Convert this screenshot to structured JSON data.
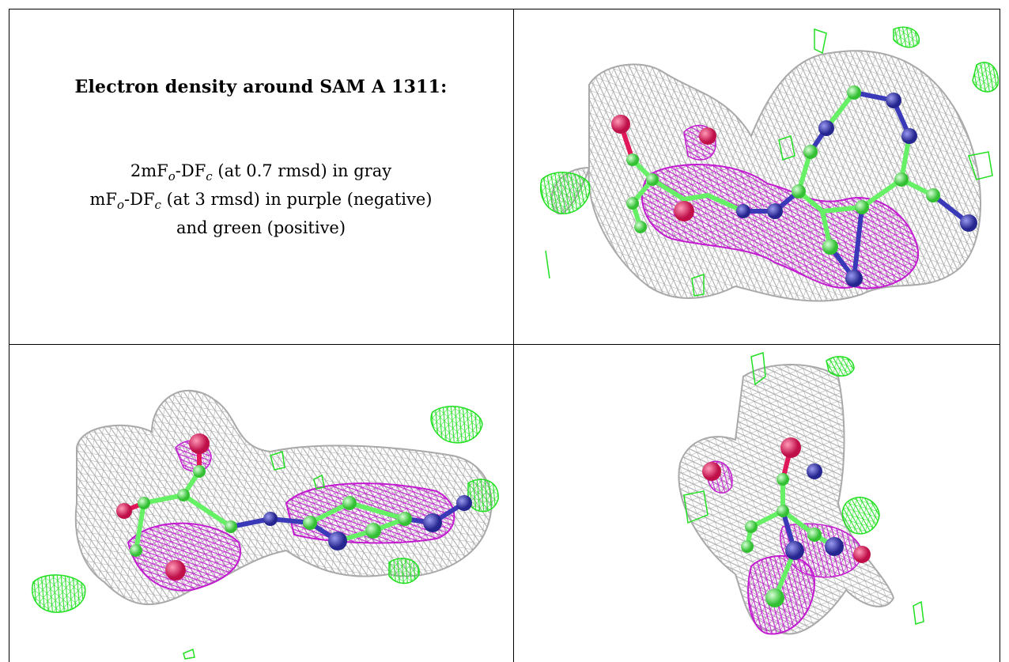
{
  "caption": {
    "title": "Electron density around SAM A 1311:",
    "line1": {
      "pre": "2mF",
      "sub1": "o",
      "mid": "-DF",
      "sub2": "c",
      "post": " (at 0.7 rmsd) in gray"
    },
    "line2": {
      "pre": "mF",
      "sub1": "o",
      "mid": "-DF",
      "sub2": "c",
      "post": " (at 3 rmsd) in purple (negative)"
    },
    "line3": "and green (positive)"
  },
  "colors": {
    "gray_mesh": "#a9a9a9",
    "purple_mesh": "#c21bd0",
    "green_mesh": "#22e022",
    "oxygen": "#e0185a",
    "nitrogen": "#3a3ab8",
    "carbon": "#66f066",
    "border": "#000000"
  },
  "panels": [
    {
      "name": "view-top-right",
      "content": "electron-density-mesh-render"
    },
    {
      "name": "view-bottom-left",
      "content": "electron-density-mesh-render"
    },
    {
      "name": "view-bottom-right",
      "content": "electron-density-mesh-render"
    }
  ]
}
